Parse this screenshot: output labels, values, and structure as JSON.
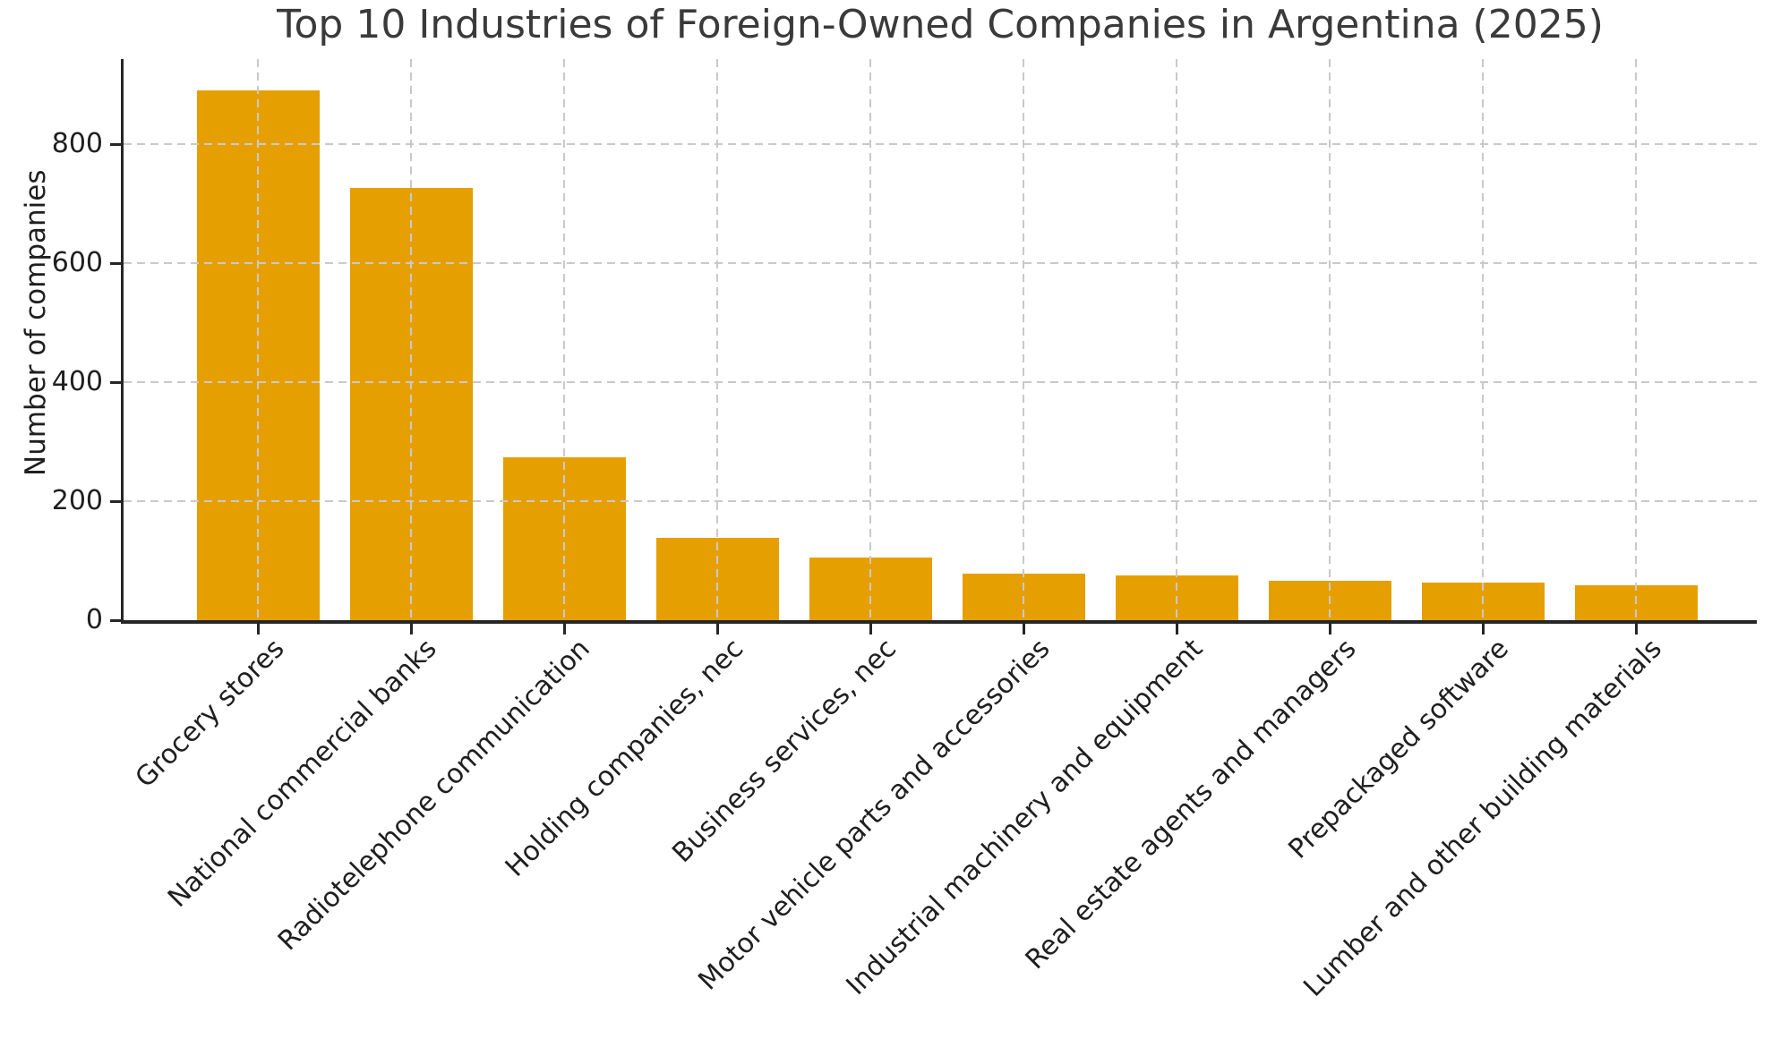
{
  "figure": {
    "background": "#ffffff"
  },
  "chart_data": {
    "type": "bar",
    "title": "Top 10 Industries of Foreign-Owned Companies in Argentina (2025)",
    "xlabel": "",
    "ylabel": "Number of companies",
    "categories": [
      "Grocery stores",
      "National commercial banks",
      "Radiotelephone communication",
      "Holding companies, nec",
      "Business services, nec",
      "Motor vehicle parts and accessories",
      "Industrial machinery and equipment",
      "Real estate agents and managers",
      "Prepackaged software",
      "Lumber and other building materials"
    ],
    "values": [
      890,
      727,
      273,
      138,
      105,
      78,
      75,
      66,
      63,
      59
    ],
    "yticks": [
      0,
      200,
      400,
      600,
      800
    ],
    "ylim": [
      0,
      943
    ],
    "bar_color": "#E69F00",
    "grid": {
      "visible": true,
      "style": "dashed",
      "axis": "both",
      "color": "#c9c9c9",
      "above_bars": true
    },
    "legend": {
      "visible": false
    },
    "xtick_rotation_deg": 45,
    "text_color": "#1f1f1f",
    "title_color": "#3a3a3a",
    "spine_color": "#262626"
  }
}
